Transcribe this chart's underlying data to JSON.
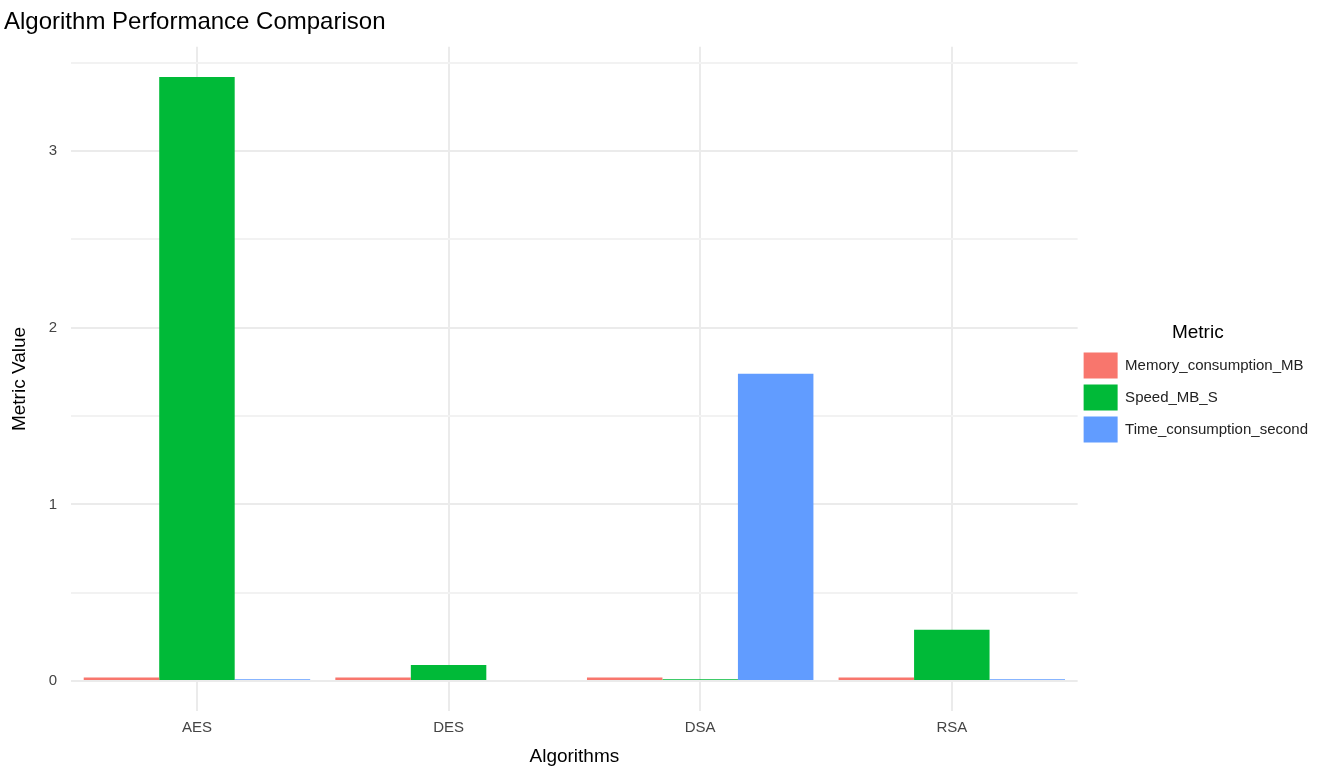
{
  "chart_data": {
    "type": "bar",
    "title": "Algorithm Performance Comparison",
    "xlabel": "Algorithms",
    "ylabel": "Metric Value",
    "legend_title": "Metric",
    "legend": "right",
    "grid": true,
    "categories": [
      "AES",
      "DES",
      "DSA",
      "RSA"
    ],
    "series": [
      {
        "name": "Memory_consumption_MB",
        "color": "#f8766d",
        "values": [
          0.02,
          0.02,
          0.02,
          0.02
        ]
      },
      {
        "name": "Speed_MB_S",
        "color": "#00ba38",
        "values": [
          3.42,
          0.09,
          0.01,
          0.29
        ]
      },
      {
        "name": "Time_consumption_second",
        "color": "#619cff",
        "values": [
          0.01,
          null,
          1.74,
          0.01
        ]
      }
    ],
    "ylim": [
      -0.171,
      3.591
    ],
    "yticks": [
      0,
      {
        "value": 0.5,
        "label": null
      },
      1,
      {
        "value": 1.5,
        "label": null
      },
      2,
      {
        "value": 2.5,
        "label": null
      },
      3,
      {
        "value": 3.5,
        "label": null
      }
    ]
  }
}
